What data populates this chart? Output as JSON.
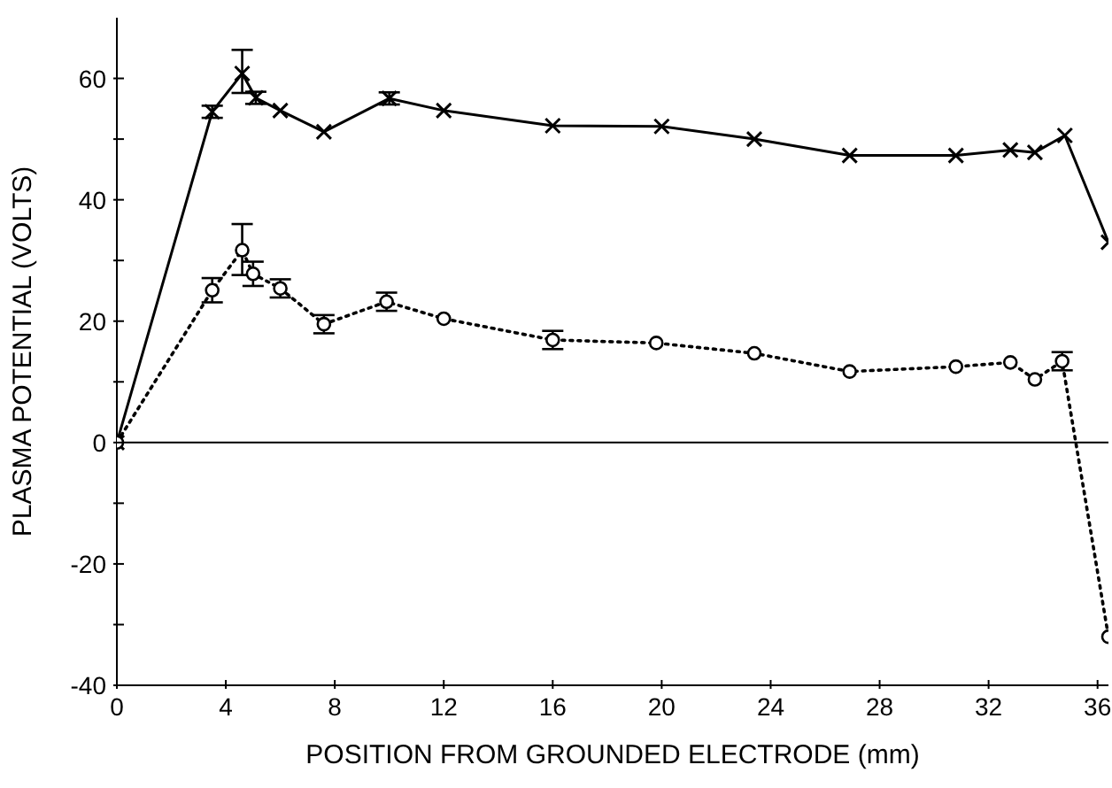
{
  "chart_data": {
    "type": "line",
    "xlabel": "POSITION FROM GROUNDED ELECTRODE (mm)",
    "ylabel": "PLASMA POTENTIAL (VOLTS)",
    "xlim": [
      0,
      36.4
    ],
    "xticks": [
      0,
      4,
      8,
      12,
      16,
      20,
      24,
      28,
      32,
      36
    ],
    "ylim": [
      -40,
      70
    ],
    "yticks": [
      -40,
      {
        "value": -30,
        "label": null
      },
      -20,
      {
        "value": -10,
        "label": null
      },
      0,
      {
        "value": 10,
        "label": null
      },
      20,
      {
        "value": 30,
        "label": null
      },
      40,
      {
        "value": 50,
        "label": null
      },
      60
    ],
    "grid": false,
    "legend": false,
    "ref_lines": [
      {
        "axis": "y",
        "value": 0,
        "color": "#000000",
        "line_style": "solid"
      }
    ],
    "series": [
      {
        "color": "#000000",
        "marker": "cross",
        "line_style": "solid",
        "x": [
          0,
          3.5,
          4.6,
          5.1,
          6.0,
          7.6,
          10.0,
          12.0,
          16.0,
          20.0,
          23.4,
          26.9,
          30.8,
          32.8,
          33.7,
          34.8,
          36.4
        ],
        "values": [
          0,
          54.5,
          60.8,
          56.8,
          54.7,
          51.2,
          56.7,
          54.7,
          52.2,
          52.1,
          50,
          47.3,
          47.3,
          48.2,
          47.8,
          50.6,
          33
        ],
        "errors": [
          null,
          1,
          [
            57.6,
            64.7
          ],
          1,
          null,
          null,
          1,
          null,
          null,
          null,
          null,
          null,
          null,
          null,
          null,
          null,
          null
        ]
      },
      {
        "color": "#000000",
        "marker": "circle",
        "line_style": "dotted",
        "x": [
          0,
          3.5,
          4.6,
          5.0,
          6.0,
          7.6,
          9.9,
          12.0,
          16.0,
          19.8,
          23.4,
          26.9,
          30.8,
          32.8,
          33.7,
          34.7,
          36.4
        ],
        "values": [
          0,
          25.1,
          31.7,
          27.8,
          25.4,
          19.5,
          23.2,
          20.4,
          16.9,
          16.4,
          14.7,
          11.7,
          12.5,
          13.2,
          10.4,
          13.4,
          -32
        ],
        "errors": [
          null,
          2,
          [
            27.6,
            36
          ],
          2,
          1.5,
          1.5,
          1.5,
          null,
          1.5,
          null,
          null,
          null,
          null,
          null,
          null,
          1.5,
          null
        ]
      }
    ]
  }
}
